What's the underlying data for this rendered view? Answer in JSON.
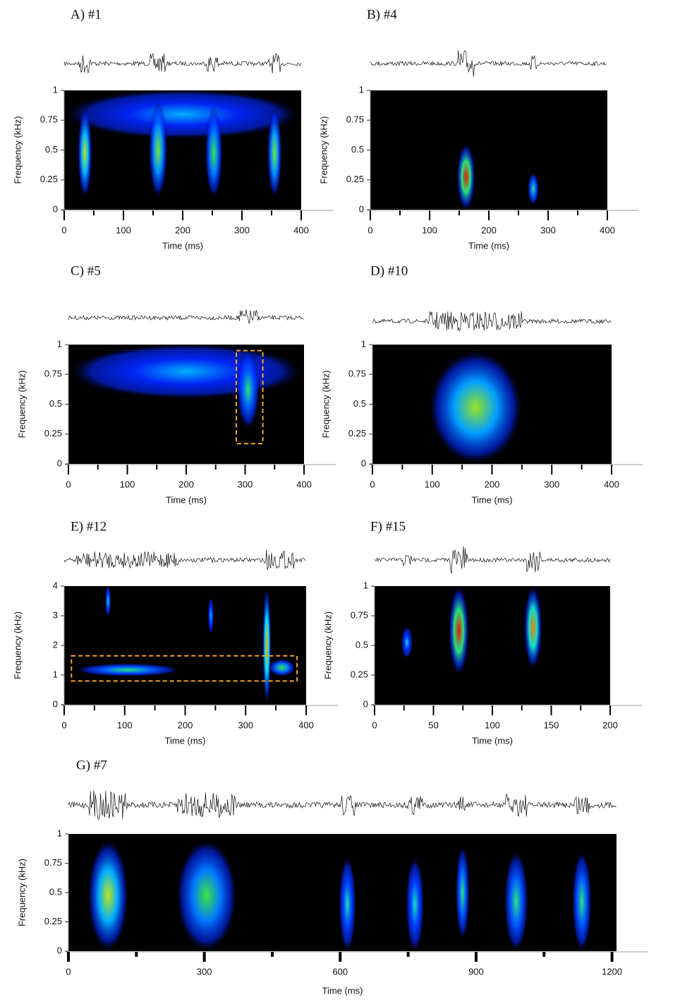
{
  "chart_data": [
    {
      "type": "spectrogram",
      "title": "A)  #1",
      "xlabel": "Time (ms)",
      "ylabel": "Frequency (kHz)",
      "xlim": [
        0,
        400
      ],
      "ylim": [
        0,
        1
      ],
      "xticks": [
        0,
        100,
        200,
        300,
        400
      ],
      "yticks": [
        0,
        0.25,
        0.5,
        0.75,
        1
      ],
      "events": [
        [
          0,
          400,
          0.6,
          1,
          0.45
        ],
        [
          25,
          45,
          0.1,
          0.85,
          0.75
        ],
        [
          145,
          172,
          0.1,
          0.9,
          0.7
        ],
        [
          240,
          265,
          0.1,
          0.85,
          0.65
        ],
        [
          345,
          365,
          0.1,
          0.85,
          0.7
        ]
      ],
      "boxes": []
    },
    {
      "type": "spectrogram",
      "title": "B) #4",
      "xlabel": "Time (ms)",
      "ylabel": "Frequency (kHz)",
      "xlim": [
        0,
        400
      ],
      "ylim": [
        0,
        1
      ],
      "xticks": [
        0,
        100,
        200,
        300,
        400
      ],
      "yticks": [
        0,
        0.25,
        0.5,
        0.75,
        1
      ],
      "events": [
        [
          148,
          175,
          0,
          0.55,
          1
        ],
        [
          268,
          282,
          0.05,
          0.3,
          0.6
        ]
      ],
      "boxes": []
    },
    {
      "type": "spectrogram",
      "title": "C) #5",
      "xlabel": "Time (ms)",
      "ylabel": "Frequency (kHz)",
      "xlim": [
        0,
        400
      ],
      "ylim": [
        0,
        1
      ],
      "xticks": [
        0,
        100,
        200,
        300,
        400
      ],
      "yticks": [
        0,
        0.25,
        0.5,
        0.75,
        1
      ],
      "events": [
        [
          0,
          400,
          0.55,
          1,
          0.45
        ],
        [
          288,
          322,
          0.3,
          0.95,
          0.6
        ]
      ],
      "boxes": [
        [
          285,
          330,
          0.17,
          0.95
        ]
      ]
    },
    {
      "type": "spectrogram",
      "title": "D) #10",
      "xlabel": "Time (ms)",
      "ylabel": "Frequency (kHz)",
      "xlim": [
        0,
        400
      ],
      "ylim": [
        0,
        1
      ],
      "xticks": [
        0,
        100,
        200,
        300,
        400
      ],
      "yticks": [
        0,
        0.25,
        0.5,
        0.75,
        1
      ],
      "events": [
        [
          95,
          250,
          0,
          0.95,
          0.72
        ]
      ],
      "boxes": []
    },
    {
      "type": "spectrogram",
      "title": "E) #12",
      "xlabel": "Time (ms)",
      "ylabel": "Frequency (kHz)",
      "xlim": [
        0,
        400
      ],
      "ylim": [
        0,
        4
      ],
      "xticks": [
        0,
        100,
        200,
        300,
        400
      ],
      "yticks": [
        0,
        1,
        2,
        3,
        4
      ],
      "events": [
        [
          20,
          190,
          1,
          1.35,
          0.6
        ],
        [
          330,
          340,
          0,
          4,
          0.85
        ],
        [
          340,
          380,
          1,
          1.5,
          0.65
        ],
        [
          70,
          75,
          3,
          4,
          0.55
        ],
        [
          240,
          245,
          2.4,
          3.6,
          0.5
        ]
      ],
      "boxes": [
        [
          12,
          385,
          0.8,
          1.65
        ]
      ]
    },
    {
      "type": "spectrogram",
      "title": "F) #15",
      "xlabel": "Time (ms)",
      "ylabel": "Frequency (kHz)",
      "xlim": [
        0,
        200
      ],
      "ylim": [
        0,
        1
      ],
      "xticks": [
        0,
        50,
        100,
        150,
        200
      ],
      "yticks": [
        0,
        0.25,
        0.5,
        0.75,
        1
      ],
      "events": [
        [
          24,
          31,
          0.4,
          0.65,
          0.5
        ],
        [
          64,
          79,
          0.25,
          1,
          1
        ],
        [
          128,
          141,
          0.3,
          1,
          0.9
        ]
      ],
      "boxes": []
    },
    {
      "type": "spectrogram",
      "title": "G) #7",
      "xlabel": "Time (ms)",
      "ylabel": "Frequency (kHz)",
      "xlim": [
        0,
        1210
      ],
      "ylim": [
        0,
        1
      ],
      "xticks": [
        0,
        300,
        600,
        900,
        1200
      ],
      "yticks": [
        0,
        0.25,
        0.5,
        0.75,
        1
      ],
      "events": [
        [
          45,
          130,
          0,
          0.95,
          0.75
        ],
        [
          240,
          370,
          0,
          0.95,
          0.65
        ],
        [
          600,
          632,
          0,
          0.8,
          0.55
        ],
        [
          748,
          782,
          0,
          0.8,
          0.55
        ],
        [
          858,
          882,
          0.1,
          0.9,
          0.6
        ],
        [
          965,
          1012,
          0,
          0.85,
          0.6
        ],
        [
          1115,
          1152,
          0,
          0.85,
          0.6
        ]
      ],
      "boxes": []
    }
  ]
}
